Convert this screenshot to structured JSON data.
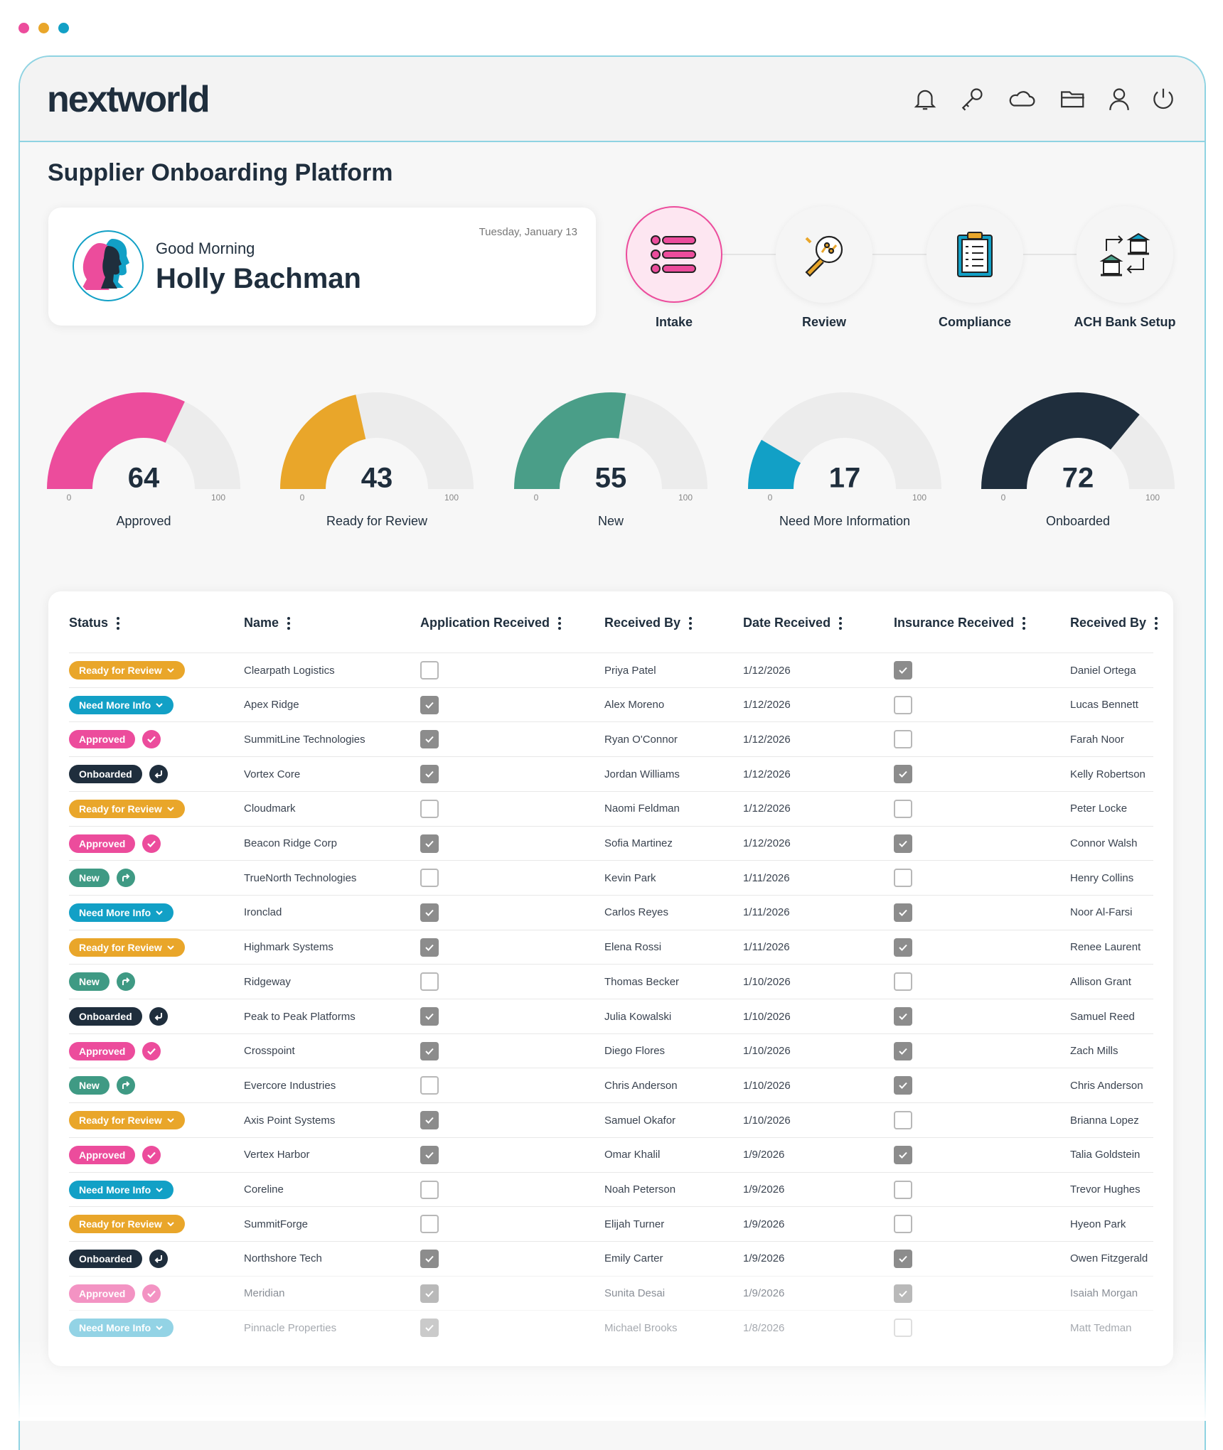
{
  "header": {
    "logo": "nextworld"
  },
  "title": "Supplier Onboarding Platform",
  "greeting": {
    "date": "Tuesday, January 13",
    "salutation": "Good Morning",
    "name": "Holly Bachman"
  },
  "steps": [
    "Intake",
    "Review",
    "Compliance",
    "ACH Bank Setup"
  ],
  "gauge_range": [
    0,
    100
  ],
  "gauges": [
    {
      "label": "Approved",
      "value": 64,
      "color": "#ec4c9c"
    },
    {
      "label": "Ready for Review",
      "value": 43,
      "color": "#e9a62a"
    },
    {
      "label": "New",
      "value": 55,
      "color": "#4a9e88"
    },
    {
      "label": "Need More Information",
      "value": 17,
      "color": "#12a0c6"
    },
    {
      "label": "Onboarded",
      "value": 72,
      "color": "#1f2e3d"
    }
  ],
  "table": {
    "columns": [
      "Status",
      "Name",
      "Application Received",
      "Received By",
      "Date Received",
      "Insurance Received",
      "Received By"
    ],
    "rows": [
      {
        "status": "Ready for Review",
        "status_color": "#e9a62a",
        "name": "Clearpath Logistics",
        "application_received": false,
        "received_by": "Priya Patel",
        "date_received": "1/12/2026",
        "insurance_received": true,
        "insurance_received_by": "Daniel Ortega"
      },
      {
        "status": "Need More Info",
        "status_color": "#12a0c6",
        "name": "Apex Ridge",
        "application_received": true,
        "received_by": "Alex Moreno",
        "date_received": "1/12/2026",
        "insurance_received": false,
        "insurance_received_by": "Lucas Bennett"
      },
      {
        "status": "Approved",
        "status_color": "#ec4c9c",
        "name": "SummitLine Technologies",
        "application_received": true,
        "received_by": "Ryan O'Connor",
        "date_received": "1/12/2026",
        "insurance_received": false,
        "insurance_received_by": "Farah Noor"
      },
      {
        "status": "Onboarded",
        "status_color": "#1f2e3d",
        "name": "Vortex Core",
        "application_received": true,
        "received_by": "Jordan Williams",
        "date_received": "1/12/2026",
        "insurance_received": true,
        "insurance_received_by": "Kelly Robertson"
      },
      {
        "status": "Ready for Review",
        "status_color": "#e9a62a",
        "name": "Cloudmark",
        "application_received": false,
        "received_by": "Naomi Feldman",
        "date_received": "1/12/2026",
        "insurance_received": false,
        "insurance_received_by": "Peter Locke"
      },
      {
        "status": "Approved",
        "status_color": "#ec4c9c",
        "name": "Beacon Ridge Corp",
        "application_received": true,
        "received_by": "Sofia Martinez",
        "date_received": "1/12/2026",
        "insurance_received": true,
        "insurance_received_by": "Connor Walsh"
      },
      {
        "status": "New",
        "status_color": "#3f9a84",
        "name": "TrueNorth Technologies",
        "application_received": false,
        "received_by": "Kevin Park",
        "date_received": "1/11/2026",
        "insurance_received": false,
        "insurance_received_by": "Henry Collins"
      },
      {
        "status": "Need More Info",
        "status_color": "#12a0c6",
        "name": "Ironclad",
        "application_received": true,
        "received_by": "Carlos Reyes",
        "date_received": "1/11/2026",
        "insurance_received": true,
        "insurance_received_by": "Noor Al-Farsi"
      },
      {
        "status": "Ready for Review",
        "status_color": "#e9a62a",
        "name": "Highmark Systems",
        "application_received": true,
        "received_by": "Elena Rossi",
        "date_received": "1/11/2026",
        "insurance_received": true,
        "insurance_received_by": "Renee Laurent"
      },
      {
        "status": "New",
        "status_color": "#3f9a84",
        "name": "Ridgeway",
        "application_received": false,
        "received_by": "Thomas Becker",
        "date_received": "1/10/2026",
        "insurance_received": false,
        "insurance_received_by": "Allison Grant"
      },
      {
        "status": "Onboarded",
        "status_color": "#1f2e3d",
        "name": "Peak to Peak Platforms",
        "application_received": true,
        "received_by": "Julia Kowalski",
        "date_received": "1/10/2026",
        "insurance_received": true,
        "insurance_received_by": "Samuel Reed"
      },
      {
        "status": "Approved",
        "status_color": "#ec4c9c",
        "name": "Crosspoint",
        "application_received": true,
        "received_by": "Diego Flores",
        "date_received": "1/10/2026",
        "insurance_received": true,
        "insurance_received_by": "Zach Mills"
      },
      {
        "status": "New",
        "status_color": "#3f9a84",
        "name": "Evercore Industries",
        "application_received": false,
        "received_by": "Chris Anderson",
        "date_received": "1/10/2026",
        "insurance_received": true,
        "insurance_received_by": "Chris Anderson"
      },
      {
        "status": "Ready for Review",
        "status_color": "#e9a62a",
        "name": "Axis Point Systems",
        "application_received": true,
        "received_by": "Samuel Okafor",
        "date_received": "1/10/2026",
        "insurance_received": false,
        "insurance_received_by": "Brianna Lopez"
      },
      {
        "status": "Approved",
        "status_color": "#ec4c9c",
        "name": "Vertex Harbor",
        "application_received": true,
        "received_by": "Omar Khalil",
        "date_received": "1/9/2026",
        "insurance_received": true,
        "insurance_received_by": "Talia Goldstein"
      },
      {
        "status": "Need More Info",
        "status_color": "#12a0c6",
        "name": "Coreline",
        "application_received": false,
        "received_by": "Noah Peterson",
        "date_received": "1/9/2026",
        "insurance_received": false,
        "insurance_received_by": "Trevor Hughes"
      },
      {
        "status": "Ready for Review",
        "status_color": "#e9a62a",
        "name": "SummitForge",
        "application_received": false,
        "received_by": "Elijah Turner",
        "date_received": "1/9/2026",
        "insurance_received": false,
        "insurance_received_by": "Hyeon Park"
      },
      {
        "status": "Onboarded",
        "status_color": "#1f2e3d",
        "name": "Northshore Tech",
        "application_received": true,
        "received_by": "Emily Carter",
        "date_received": "1/9/2026",
        "insurance_received": true,
        "insurance_received_by": "Owen Fitzgerald"
      },
      {
        "status": "Approved",
        "status_color": "#ec4c9c",
        "name": "Meridian",
        "application_received": true,
        "received_by": "Sunita Desai",
        "date_received": "1/9/2026",
        "insurance_received": true,
        "insurance_received_by": "Isaiah Morgan"
      },
      {
        "status": "Need More Info",
        "status_color": "#12a0c6",
        "name": "Pinnacle Properties",
        "application_received": true,
        "received_by": "Michael Brooks",
        "date_received": "1/8/2026",
        "insurance_received": false,
        "insurance_received_by": "Matt Tedman"
      }
    ]
  }
}
